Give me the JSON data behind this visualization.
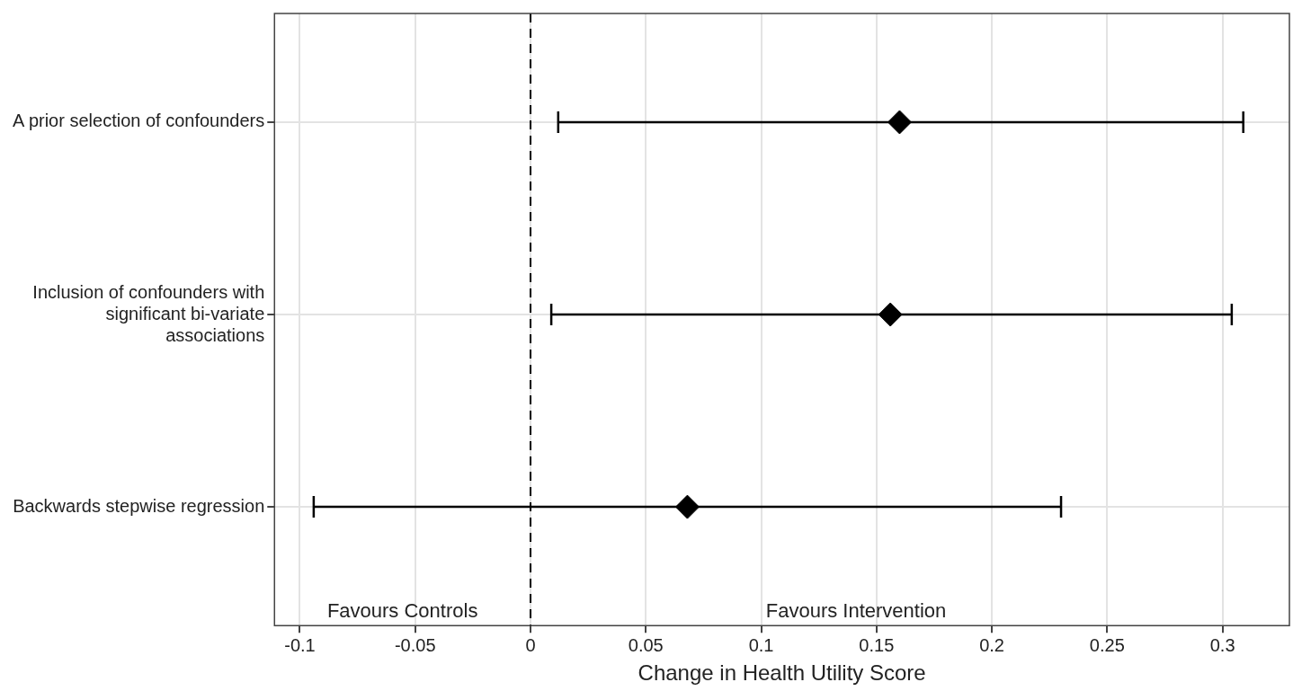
{
  "chart_data": {
    "type": "scatter",
    "orientation": "horizontal",
    "xlabel": "Change in Health Utility Score",
    "categories": [
      "A prior selection of confounders",
      "Inclusion of confounders with significant bi-variate associations",
      "Backwards stepwise regression"
    ],
    "values": [
      0.16,
      0.156,
      0.068
    ],
    "errors": [
      [
        0.012,
        0.309
      ],
      [
        0.009,
        0.304
      ],
      [
        -0.094,
        0.23
      ]
    ],
    "color": "#000000",
    "marker": "diamond",
    "xlim": [
      -0.111,
      0.329
    ],
    "xticks": [
      -0.1,
      -0.05,
      0,
      0.05,
      0.1,
      0.15,
      0.2,
      0.25,
      0.3
    ],
    "ref_lines": [
      {
        "axis": "x",
        "value": 0,
        "line_style": "dashed",
        "color": "#000000"
      }
    ],
    "annotations": [
      "Favours Controls",
      "Favours Intervention"
    ],
    "grid": true,
    "legend": false
  }
}
